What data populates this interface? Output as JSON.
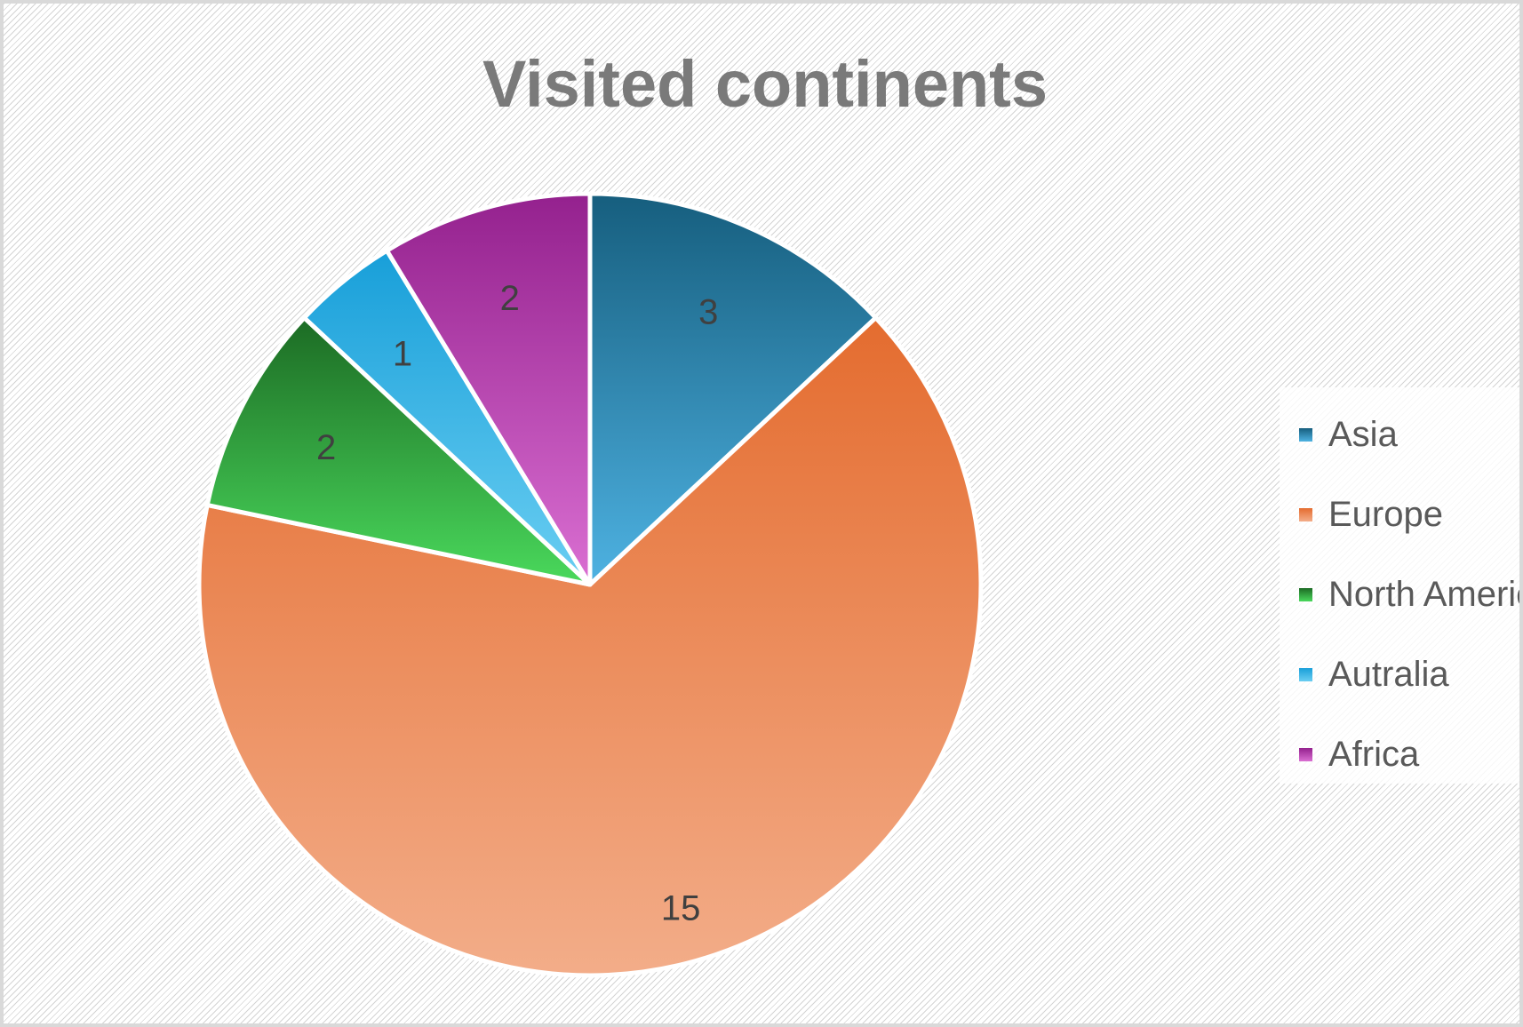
{
  "chart_data": {
    "type": "pie",
    "title": "Visited continents",
    "categories": [
      "Asia",
      "Europe",
      "North America",
      "Autralia",
      "Africa"
    ],
    "values": [
      3,
      15,
      2,
      1,
      2
    ],
    "data_labels": [
      "3",
      "15",
      "2",
      "1",
      "2"
    ],
    "legend_position": "right",
    "start_angle_deg": 0,
    "direction": "clockwise",
    "colors": [
      {
        "top": "#165e7e",
        "bottom": "#4eb2e2"
      },
      {
        "top": "#e46c2f",
        "bottom": "#f3ad89"
      },
      {
        "top": "#1c6b24",
        "bottom": "#4ad95c"
      },
      {
        "top": "#189fd9",
        "bottom": "#6acef2"
      },
      {
        "top": "#94218e",
        "bottom": "#da6fd2"
      }
    ]
  }
}
